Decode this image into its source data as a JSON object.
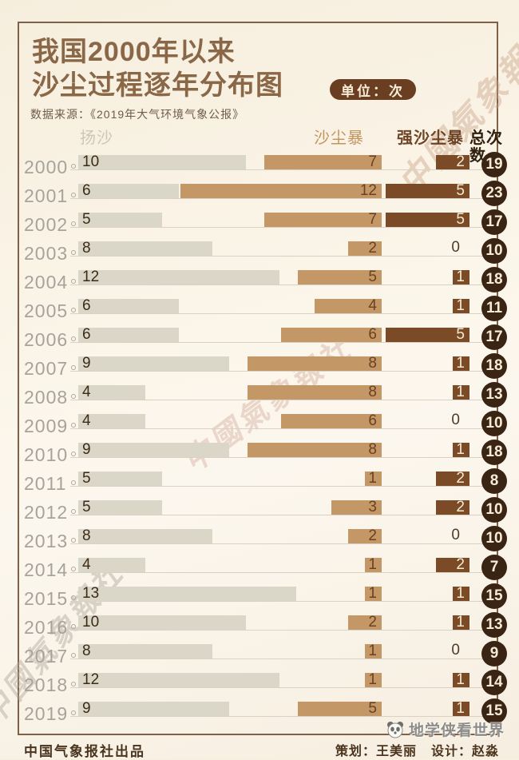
{
  "title": {
    "line1": "我国2000年以来",
    "line2": "沙尘过程逐年分布图",
    "unit_badge": "单位：次"
  },
  "source": "数据来源：《2019年大气环境气象公报》",
  "column_headers": {
    "yangsha": "扬沙",
    "shachenbao": "沙尘暴",
    "qiang_shachenbao": "强沙尘暴",
    "total": "总次数"
  },
  "chart_data": {
    "type": "bar",
    "orientation": "horizontal",
    "title": "我国2000年以来沙尘过程逐年分布图",
    "unit": "次",
    "legend_position": "top",
    "grid": false,
    "categories": [
      "2000",
      "2001",
      "2002",
      "2003",
      "2004",
      "2005",
      "2006",
      "2007",
      "2008",
      "2009",
      "2010",
      "2011",
      "2012",
      "2013",
      "2014",
      "2015",
      "2016",
      "2017",
      "2018",
      "2019"
    ],
    "series": [
      {
        "name": "扬沙",
        "align": "left",
        "color": "#dbd7c8",
        "value_color": "#3c2b17",
        "values": [
          10,
          6,
          5,
          8,
          12,
          6,
          6,
          9,
          4,
          4,
          9,
          5,
          5,
          8,
          4,
          13,
          10,
          8,
          12,
          9
        ]
      },
      {
        "name": "沙尘暴",
        "align": "right",
        "color": "#c49767",
        "value_color": "#6b4120",
        "values": [
          7,
          12,
          7,
          2,
          5,
          4,
          6,
          8,
          8,
          6,
          8,
          1,
          3,
          2,
          1,
          1,
          2,
          1,
          1,
          5
        ]
      },
      {
        "name": "强沙尘暴",
        "align": "right",
        "color": "#7b4a26",
        "value_color": "#f5ead2",
        "values": [
          2,
          5,
          5,
          0,
          1,
          1,
          5,
          1,
          1,
          0,
          1,
          2,
          2,
          0,
          2,
          1,
          1,
          0,
          1,
          1
        ]
      }
    ],
    "totals": {
      "label": "总次数",
      "badge_color": "#3a2414",
      "text_color": "#f6ecd4",
      "values": [
        19,
        23,
        17,
        10,
        18,
        11,
        17,
        18,
        13,
        10,
        18,
        8,
        10,
        10,
        7,
        15,
        13,
        9,
        14,
        15
      ]
    }
  },
  "watermarks": {
    "script_text": "中國氣象報社",
    "wechat": "地学侠看世界"
  },
  "footer": {
    "produced_by": "中国气象报社出品",
    "plan": "策划：王美丽",
    "design": "设计：赵淼"
  },
  "colors": {
    "title": "#8a6847",
    "badge_bg": "#6a3e20",
    "badge_text": "#f8edd8",
    "frame_border": "#7e6147",
    "background": "#f8f1e4"
  }
}
